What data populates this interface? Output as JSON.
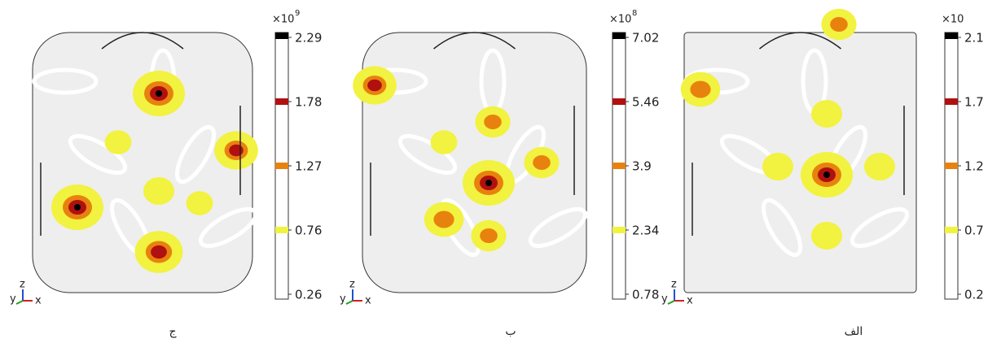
{
  "panels": [
    {
      "caption": "ج",
      "multiplier": "×10",
      "exponent": "9",
      "ticks": [
        "2.29",
        "1.78",
        "1.27",
        "0.76",
        "0.26"
      ],
      "axes": [
        "y",
        "z",
        "x"
      ]
    },
    {
      "caption": "ب",
      "multiplier": "×10",
      "exponent": "8",
      "ticks": [
        "7.02",
        "5.46",
        "3.9",
        "2.34",
        "0.78"
      ],
      "axes": [
        "y",
        "z",
        "x"
      ]
    },
    {
      "caption": "الف",
      "multiplier": "×10",
      "ticks": [
        "2.1",
        "1.7",
        "1.2",
        "0.7",
        "0.2"
      ],
      "axes": [
        "y",
        "z",
        "x"
      ]
    }
  ]
}
